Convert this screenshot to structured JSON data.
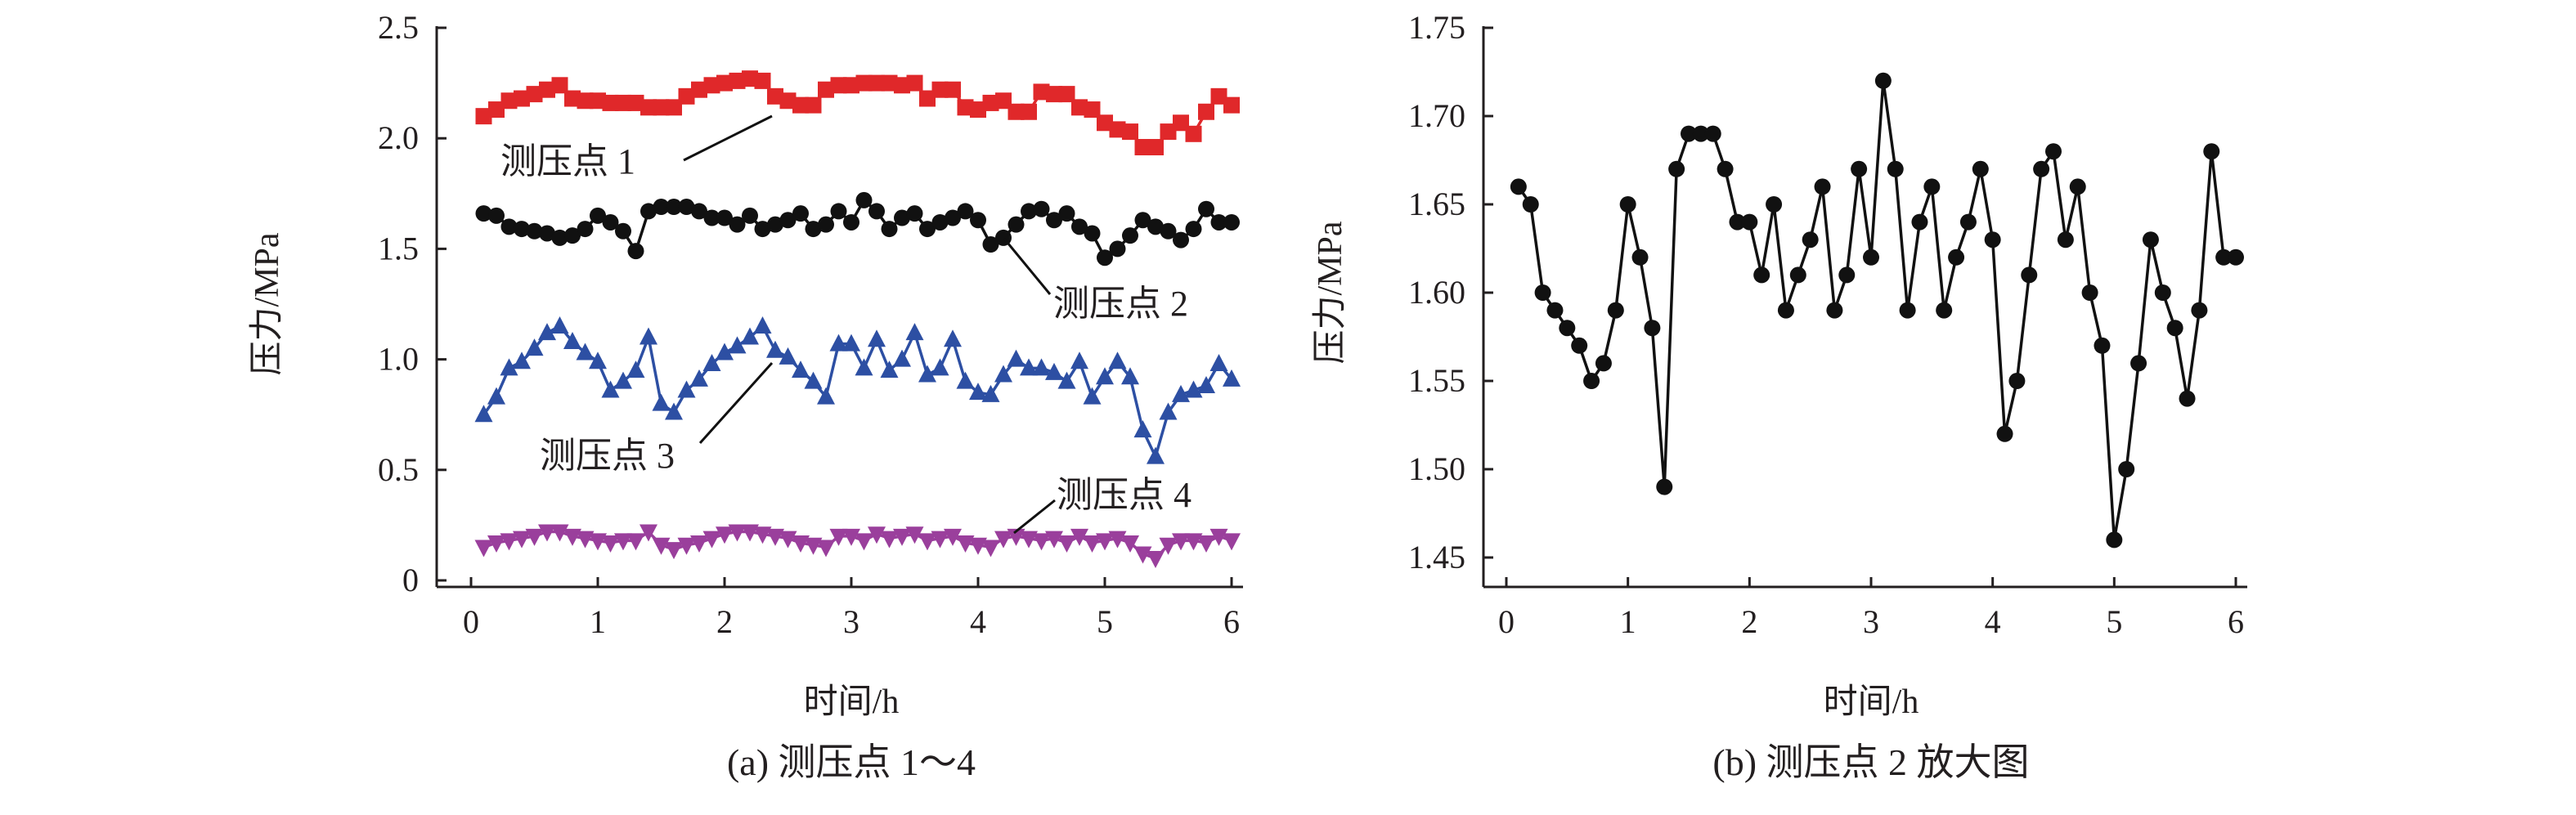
{
  "chart_data": [
    {
      "type": "line",
      "caption": "(a) 测压点 1～4",
      "xlabel": "时间/h",
      "ylabel": "压力/MPa",
      "xlim": [
        0,
        6
      ],
      "ylim": [
        0,
        2.5
      ],
      "xticks": [
        "0",
        "1",
        "2",
        "3",
        "4",
        "5",
        "6"
      ],
      "yticks": [
        "0",
        "0.5",
        "1.0",
        "1.5",
        "2.0",
        "2.5"
      ],
      "grid": false,
      "x_start": 0.1,
      "x_step": 0.1,
      "series": [
        {
          "name": "测压点 1",
          "label": "测压点 1",
          "color": "#e0282a",
          "marker": "square",
          "values": [
            2.1,
            2.13,
            2.17,
            2.18,
            2.2,
            2.22,
            2.24,
            2.18,
            2.17,
            2.17,
            2.16,
            2.16,
            2.16,
            2.14,
            2.14,
            2.14,
            2.19,
            2.22,
            2.24,
            2.25,
            2.26,
            2.27,
            2.26,
            2.19,
            2.17,
            2.15,
            2.15,
            2.22,
            2.24,
            2.24,
            2.25,
            2.25,
            2.25,
            2.24,
            2.25,
            2.18,
            2.22,
            2.22,
            2.14,
            2.13,
            2.16,
            2.17,
            2.12,
            2.12,
            2.21,
            2.2,
            2.2,
            2.14,
            2.13,
            2.07,
            2.04,
            2.03,
            1.96,
            1.96,
            2.03,
            2.07,
            2.02,
            2.12,
            2.19,
            2.15
          ]
        },
        {
          "name": "测压点 2",
          "label": "测压点 2",
          "color": "#111111",
          "marker": "circle",
          "values": [
            1.66,
            1.65,
            1.6,
            1.59,
            1.58,
            1.57,
            1.55,
            1.56,
            1.59,
            1.65,
            1.62,
            1.58,
            1.49,
            1.67,
            1.69,
            1.69,
            1.69,
            1.67,
            1.64,
            1.64,
            1.61,
            1.65,
            1.59,
            1.61,
            1.63,
            1.66,
            1.59,
            1.61,
            1.67,
            1.62,
            1.72,
            1.67,
            1.59,
            1.64,
            1.66,
            1.59,
            1.62,
            1.64,
            1.67,
            1.63,
            1.52,
            1.55,
            1.61,
            1.67,
            1.68,
            1.63,
            1.66,
            1.6,
            1.57,
            1.46,
            1.5,
            1.56,
            1.63,
            1.6,
            1.58,
            1.54,
            1.59,
            1.68,
            1.62,
            1.62
          ]
        },
        {
          "name": "测压点 3",
          "label": "测压点 3",
          "color": "#2d4fa3",
          "marker": "triangle-up",
          "values": [
            0.75,
            0.83,
            0.96,
            0.99,
            1.05,
            1.12,
            1.15,
            1.08,
            1.03,
            0.99,
            0.86,
            0.9,
            0.95,
            1.1,
            0.8,
            0.76,
            0.86,
            0.91,
            0.98,
            1.03,
            1.06,
            1.1,
            1.15,
            1.04,
            1.01,
            0.95,
            0.9,
            0.83,
            1.07,
            1.07,
            0.96,
            1.09,
            0.95,
            1.0,
            1.12,
            0.93,
            0.96,
            1.09,
            0.9,
            0.85,
            0.84,
            0.93,
            1.0,
            0.96,
            0.96,
            0.94,
            0.9,
            0.99,
            0.83,
            0.92,
            0.99,
            0.92,
            0.68,
            0.56,
            0.76,
            0.84,
            0.86,
            0.88,
            0.98,
            0.91
          ]
        },
        {
          "name": "测压点 4",
          "label": "测压点 4",
          "color": "#9a3f9c",
          "marker": "triangle-down",
          "values": [
            0.15,
            0.17,
            0.18,
            0.19,
            0.2,
            0.22,
            0.22,
            0.2,
            0.19,
            0.18,
            0.17,
            0.18,
            0.18,
            0.22,
            0.16,
            0.14,
            0.16,
            0.17,
            0.19,
            0.21,
            0.22,
            0.22,
            0.21,
            0.2,
            0.19,
            0.17,
            0.16,
            0.15,
            0.2,
            0.2,
            0.18,
            0.21,
            0.19,
            0.2,
            0.21,
            0.18,
            0.19,
            0.2,
            0.17,
            0.16,
            0.15,
            0.19,
            0.2,
            0.19,
            0.18,
            0.19,
            0.17,
            0.2,
            0.17,
            0.18,
            0.19,
            0.17,
            0.12,
            0.1,
            0.16,
            0.18,
            0.18,
            0.17,
            0.2,
            0.18
          ]
        }
      ]
    },
    {
      "type": "line",
      "caption": "(b) 测压点 2 放大图",
      "xlabel": "时间/h",
      "ylabel": "压力/MPa",
      "xlim": [
        0,
        6
      ],
      "ylim": [
        1.45,
        1.75
      ],
      "xticks": [
        "0",
        "1",
        "2",
        "3",
        "4",
        "5",
        "6"
      ],
      "yticks": [
        "1.45",
        "1.50",
        "1.55",
        "1.60",
        "1.65",
        "1.70",
        "1.75"
      ],
      "grid": false,
      "x_start": 0.1,
      "x_step": 0.1,
      "series": [
        {
          "name": "测压点 2",
          "color": "#111111",
          "marker": "circle",
          "values": [
            1.66,
            1.65,
            1.6,
            1.59,
            1.58,
            1.57,
            1.55,
            1.56,
            1.59,
            1.65,
            1.62,
            1.58,
            1.49,
            1.67,
            1.69,
            1.69,
            1.69,
            1.67,
            1.64,
            1.64,
            1.61,
            1.65,
            1.59,
            1.61,
            1.63,
            1.66,
            1.59,
            1.61,
            1.67,
            1.62,
            1.72,
            1.67,
            1.59,
            1.64,
            1.66,
            1.59,
            1.62,
            1.64,
            1.67,
            1.63,
            1.52,
            1.55,
            1.61,
            1.67,
            1.68,
            1.63,
            1.66,
            1.6,
            1.57,
            1.46,
            1.5,
            1.56,
            1.63,
            1.6,
            1.58,
            1.54,
            1.59,
            1.68,
            1.62,
            1.62
          ]
        }
      ]
    }
  ]
}
